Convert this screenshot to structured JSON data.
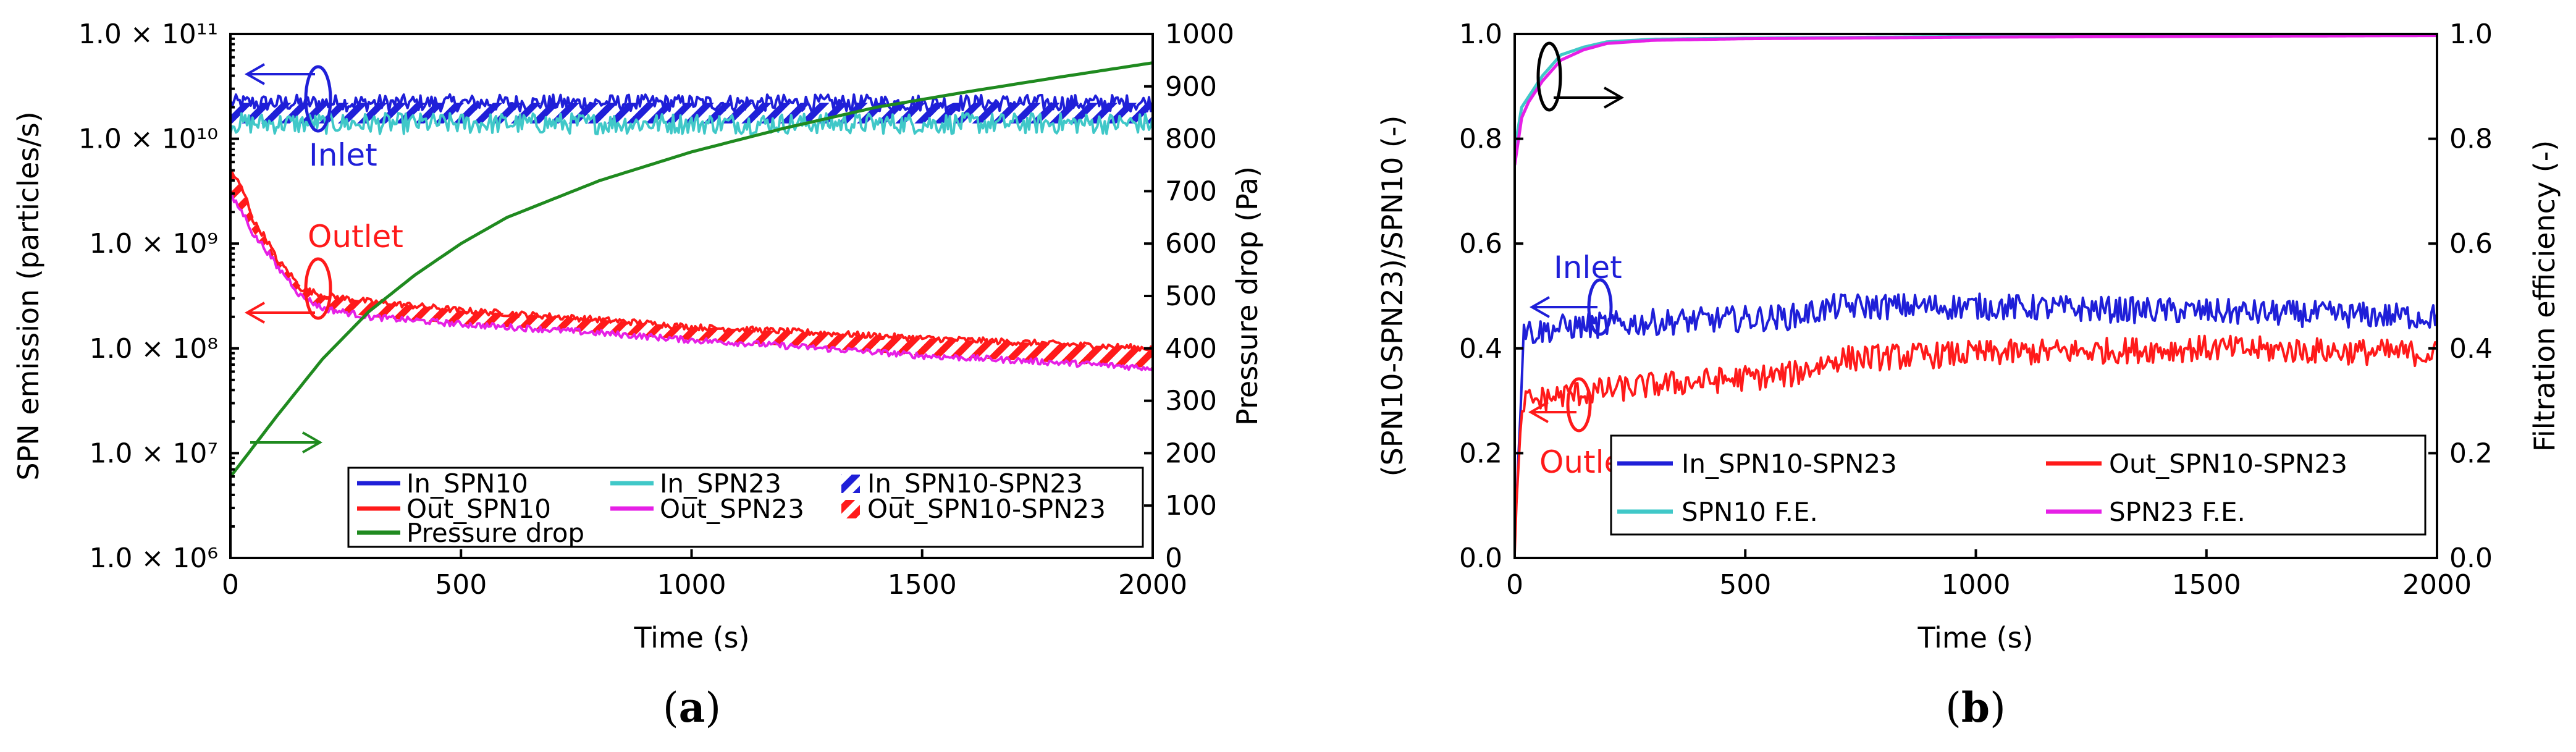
{
  "chart_data": [
    {
      "type": "line",
      "panel_label": "a",
      "xlabel": "Time (s)",
      "ylabel_left": "SPN emission (particles/s)",
      "ylabel_right": "Pressure drop (Pa)",
      "xlim": [
        0,
        2000
      ],
      "xticks": [
        "0",
        "500",
        "1000",
        "1500",
        "2000"
      ],
      "ylim_left_log10": [
        6,
        11
      ],
      "yticks_left": [
        {
          "mantissa": "1.0 × 10",
          "exp": "11"
        },
        {
          "mantissa": "1.0 × 10",
          "exp": "10"
        },
        {
          "mantissa": "1.0 × 10",
          "exp": "9"
        },
        {
          "mantissa": "1.0 × 10",
          "exp": "8"
        },
        {
          "mantissa": "1.0 × 10",
          "exp": "7"
        },
        {
          "mantissa": "1.0 × 10",
          "exp": "6"
        }
      ],
      "ylim_right": [
        0,
        1000
      ],
      "yticks_right": [
        "0",
        "100",
        "200",
        "300",
        "400",
        "500",
        "600",
        "700",
        "800",
        "900",
        "1000"
      ],
      "series": [
        {
          "name": "In_SPN10",
          "color": "#1f1fd8",
          "axis": "left",
          "x": [
            0,
            2000
          ],
          "y": [
            22000000000.0,
            22000000000.0
          ],
          "noise": 0.08
        },
        {
          "name": "In_SPN23",
          "color": "#40c8c8",
          "axis": "left",
          "x": [
            0,
            2000
          ],
          "y": [
            14000000000.0,
            14000000000.0
          ],
          "noise": 0.1
        },
        {
          "name": "Out_SPN10",
          "color": "#ff1a1a",
          "axis": "left",
          "x": [
            0,
            50,
            100,
            150,
            200,
            300,
            500,
            1000,
            1500,
            2000
          ],
          "y": [
            5000000000.0,
            1600000000.0,
            700000000.0,
            380000000.0,
            320000000.0,
            280000000.0,
            230000000.0,
            160000000.0,
            125000000.0,
            100000000.0
          ],
          "noise": 0.03
        },
        {
          "name": "Out_SPN23",
          "color": "#e620e6",
          "axis": "left",
          "x": [
            0,
            50,
            100,
            150,
            200,
            300,
            500,
            1000,
            1500,
            2000
          ],
          "y": [
            2800000000.0,
            1200000000.0,
            600000000.0,
            320000000.0,
            240000000.0,
            200000000.0,
            170000000.0,
            120000000.0,
            85000000.0,
            65000000.0
          ],
          "noise": 0.03
        },
        {
          "name": "Pressure drop",
          "color": "#1f8a1f",
          "axis": "right",
          "x": [
            0,
            100,
            200,
            300,
            400,
            500,
            600,
            800,
            1000,
            1200,
            1400,
            1600,
            1800,
            2000
          ],
          "y": [
            155,
            270,
            380,
            470,
            540,
            600,
            650,
            720,
            775,
            820,
            860,
            890,
            918,
            945
          ],
          "noise": 0
        }
      ],
      "bands": [
        {
          "name": "In_SPN10-SPN23",
          "color": "#1f1fd8",
          "upper": "In_SPN10",
          "lower": "In_SPN23"
        },
        {
          "name": "Out_SPN10-SPN23",
          "color": "#ff1a1a",
          "upper": "Out_SPN10",
          "lower": "Out_SPN23"
        }
      ],
      "legend": [
        "In_SPN10",
        "In_SPN23",
        "In_SPN10-SPN23",
        "Out_SPN10",
        "Out_SPN23",
        "Out_SPN10-SPN23",
        "Pressure drop"
      ],
      "legend_position": "bottom-right",
      "annotations": [
        {
          "text": "Inlet",
          "color": "#1f1fd8"
        },
        {
          "text": "Outlet",
          "color": "#ff1a1a"
        }
      ]
    },
    {
      "type": "line",
      "panel_label": "b",
      "xlabel": "Time (s)",
      "ylabel_left": "(SPN10-SPN23)/SPN10 (-)",
      "ylabel_right": "Filtration efficiency (-)",
      "xlim": [
        0,
        2000
      ],
      "xticks": [
        "0",
        "500",
        "1000",
        "1500",
        "2000"
      ],
      "ylim_left": [
        0,
        1
      ],
      "yticks_left": [
        "1.0",
        "0.8",
        "0.6",
        "0.4",
        "0.2",
        "0.0"
      ],
      "ylim_right": [
        0,
        1
      ],
      "yticks_right": [
        "1.0",
        "0.8",
        "0.6",
        "0.4",
        "0.2",
        "0.0"
      ],
      "series": [
        {
          "name": "In_SPN10-SPN23",
          "color": "#1f1fd8",
          "axis": "left",
          "x": [
            0,
            10,
            20,
            40,
            100,
            300,
            600,
            700,
            1000,
            1500,
            2000
          ],
          "y": [
            0.05,
            0.25,
            0.44,
            0.43,
            0.44,
            0.45,
            0.46,
            0.48,
            0.48,
            0.47,
            0.46
          ],
          "noise": 0.025
        },
        {
          "name": "Out_SPN10-SPN23",
          "color": "#ff1a1a",
          "axis": "left",
          "x": [
            0,
            10,
            20,
            40,
            100,
            300,
            600,
            700,
            1000,
            1500,
            2000
          ],
          "y": [
            0.03,
            0.2,
            0.3,
            0.3,
            0.31,
            0.33,
            0.35,
            0.38,
            0.39,
            0.4,
            0.39
          ],
          "noise": 0.025
        },
        {
          "name": "SPN10 F.E.",
          "color": "#40c8c8",
          "axis": "right",
          "x": [
            0,
            15,
            30,
            60,
            100,
            150,
            200,
            300,
            500,
            1000,
            2000
          ],
          "y": [
            0.78,
            0.86,
            0.88,
            0.92,
            0.96,
            0.975,
            0.985,
            0.99,
            0.992,
            0.995,
            0.998
          ],
          "noise": 0
        },
        {
          "name": "SPN23 F.E.",
          "color": "#e620e6",
          "axis": "right",
          "x": [
            0,
            15,
            30,
            60,
            100,
            150,
            200,
            300,
            500,
            1000,
            2000
          ],
          "y": [
            0.75,
            0.84,
            0.87,
            0.91,
            0.95,
            0.97,
            0.982,
            0.988,
            0.991,
            0.994,
            0.997
          ],
          "noise": 0
        }
      ],
      "legend": [
        "In_SPN10-SPN23",
        "Out_SPN10-SPN23",
        "SPN10 F.E.",
        "SPN23 F.E."
      ],
      "legend_position": "bottom-right",
      "annotations": [
        {
          "text": "Inlet",
          "color": "#1f1fd8"
        },
        {
          "text": "Outlet",
          "color": "#ff1a1a"
        }
      ]
    }
  ]
}
